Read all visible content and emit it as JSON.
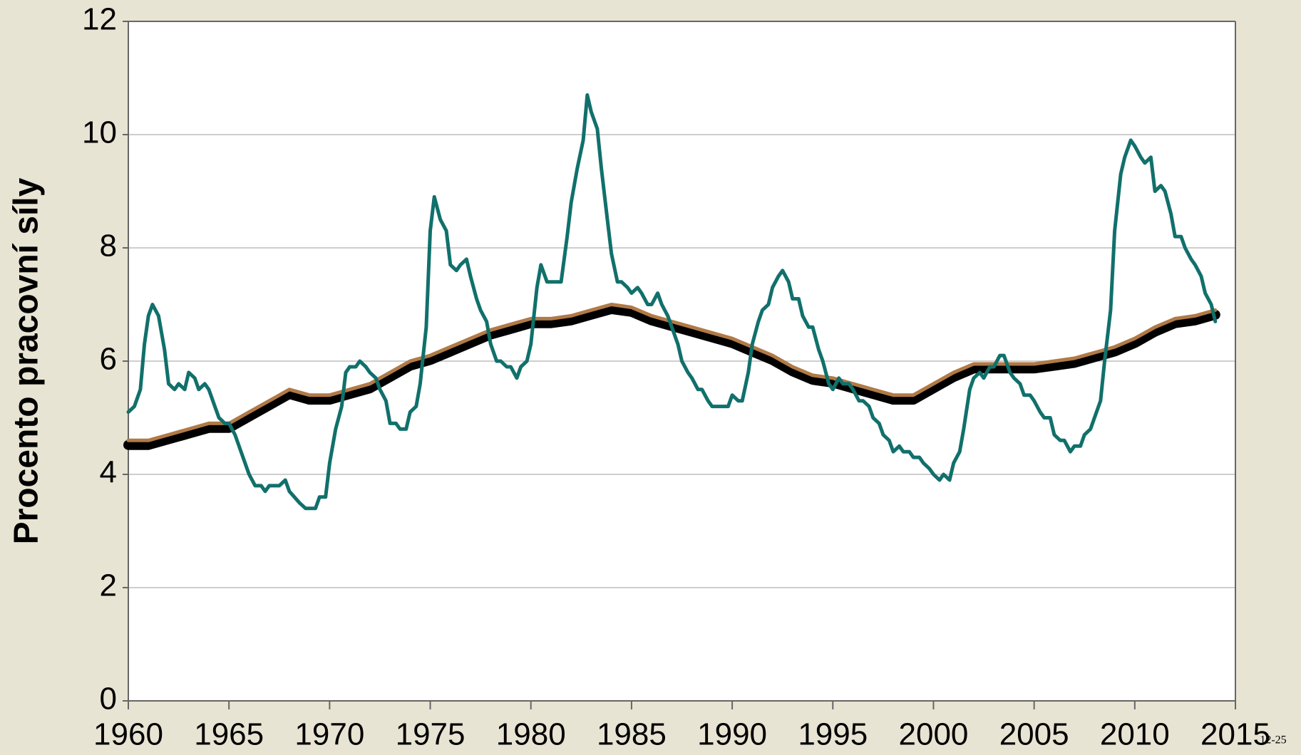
{
  "chart_data": {
    "type": "line",
    "y_label": "Procento pracovní síly",
    "page_number": "12-25",
    "xlim": [
      1960,
      2015
    ],
    "xticks": [
      1960,
      1965,
      1970,
      1975,
      1980,
      1985,
      1990,
      1995,
      2000,
      2005,
      2010,
      2015
    ],
    "ylim": [
      0,
      12
    ],
    "yticks": [
      0,
      2,
      4,
      6,
      8,
      10,
      12
    ],
    "grid": true,
    "series": [
      {
        "color": "#000000",
        "width": 14,
        "x": [
          1960,
          1961,
          1962,
          1963,
          1964,
          1965,
          1966,
          1967,
          1968,
          1969,
          1970,
          1971,
          1972,
          1973,
          1974,
          1975,
          1976,
          1977,
          1978,
          1979,
          1980,
          1981,
          1982,
          1983,
          1984,
          1985,
          1986,
          1987,
          1988,
          1989,
          1990,
          1991,
          1992,
          1993,
          1994,
          1995,
          1996,
          1997,
          1998,
          1999,
          2000,
          2001,
          2002,
          2003,
          2004,
          2005,
          2006,
          2007,
          2008,
          2009,
          2010,
          2011,
          2012,
          2013,
          2014
        ],
        "values": [
          4.52,
          4.52,
          4.62,
          4.72,
          4.82,
          4.82,
          5.02,
          5.22,
          5.42,
          5.32,
          5.32,
          5.42,
          5.52,
          5.72,
          5.92,
          6.02,
          6.17,
          6.32,
          6.47,
          6.57,
          6.67,
          6.67,
          6.72,
          6.82,
          6.92,
          6.87,
          6.72,
          6.62,
          6.52,
          6.42,
          6.32,
          6.17,
          6.02,
          5.82,
          5.67,
          5.62,
          5.52,
          5.42,
          5.32,
          5.32,
          5.52,
          5.72,
          5.87,
          5.87,
          5.87,
          5.87,
          5.92,
          5.97,
          6.07,
          6.17,
          6.32,
          6.52,
          6.67,
          6.72,
          6.82
        ]
      },
      {
        "color": "#b07a46",
        "width": 5,
        "x": [
          1960,
          1961,
          1962,
          1963,
          1964,
          1965,
          1966,
          1967,
          1968,
          1969,
          1970,
          1971,
          1972,
          1973,
          1974,
          1975,
          1976,
          1977,
          1978,
          1979,
          1980,
          1981,
          1982,
          1983,
          1984,
          1985,
          1986,
          1987,
          1988,
          1989,
          1990,
          1991,
          1992,
          1993,
          1994,
          1995,
          1996,
          1997,
          1998,
          1999,
          2000,
          2001,
          2002,
          2003,
          2004,
          2005,
          2006,
          2007,
          2008,
          2009,
          2010,
          2011,
          2012,
          2013,
          2014
        ],
        "values": [
          4.6,
          4.6,
          4.7,
          4.8,
          4.9,
          4.9,
          5.1,
          5.3,
          5.5,
          5.4,
          5.4,
          5.5,
          5.6,
          5.8,
          6.0,
          6.1,
          6.25,
          6.4,
          6.55,
          6.65,
          6.75,
          6.75,
          6.8,
          6.9,
          7.0,
          6.95,
          6.8,
          6.7,
          6.6,
          6.5,
          6.4,
          6.25,
          6.1,
          5.9,
          5.75,
          5.7,
          5.6,
          5.5,
          5.4,
          5.4,
          5.6,
          5.8,
          5.95,
          5.95,
          5.95,
          5.95,
          6.0,
          6.05,
          6.15,
          6.25,
          6.4,
          6.6,
          6.75,
          6.8,
          6.9
        ]
      },
      {
        "color": "#11706b",
        "width": 5,
        "x": [
          1960,
          1960.3,
          1960.6,
          1960.8,
          1961,
          1961.2,
          1961.5,
          1961.8,
          1962,
          1962.3,
          1962.5,
          1962.8,
          1963,
          1963.3,
          1963.5,
          1963.8,
          1964,
          1964.3,
          1964.5,
          1964.8,
          1965,
          1965.3,
          1965.6,
          1966,
          1966.3,
          1966.6,
          1966.8,
          1967,
          1967.5,
          1967.8,
          1968,
          1968.5,
          1968.8,
          1969.3,
          1969.5,
          1969.8,
          1970,
          1970.3,
          1970.6,
          1970.8,
          1971,
          1971.3,
          1971.5,
          1971.8,
          1972,
          1972.3,
          1972.5,
          1972.8,
          1973,
          1973.3,
          1973.5,
          1973.8,
          1974,
          1974.3,
          1974.5,
          1974.8,
          1975,
          1975.2,
          1975.5,
          1975.8,
          1976,
          1976.3,
          1976.5,
          1976.8,
          1977,
          1977.3,
          1977.5,
          1977.8,
          1978,
          1978.3,
          1978.5,
          1978.8,
          1979,
          1979.3,
          1979.5,
          1979.8,
          1980,
          1980.3,
          1980.5,
          1980.8,
          1981,
          1981.3,
          1981.5,
          1981.8,
          1982,
          1982.3,
          1982.6,
          1982.8,
          1983,
          1983.3,
          1983.5,
          1983.8,
          1984,
          1984.3,
          1984.5,
          1984.8,
          1985,
          1985.3,
          1985.5,
          1985.8,
          1986,
          1986.3,
          1986.5,
          1986.8,
          1987,
          1987.3,
          1987.5,
          1987.8,
          1988,
          1988.3,
          1988.5,
          1988.8,
          1989,
          1989.5,
          1989.8,
          1990,
          1990.3,
          1990.5,
          1990.8,
          1991,
          1991.3,
          1991.5,
          1991.8,
          1992,
          1992.3,
          1992.5,
          1992.8,
          1993,
          1993.3,
          1993.5,
          1993.8,
          1994,
          1994.3,
          1994.5,
          1994.8,
          1995,
          1995.3,
          1995.5,
          1995.8,
          1996,
          1996.3,
          1996.5,
          1996.8,
          1997,
          1997.3,
          1997.5,
          1997.8,
          1998,
          1998.3,
          1998.5,
          1998.8,
          1999,
          1999.3,
          1999.5,
          1999.8,
          2000,
          2000.3,
          2000.5,
          2000.8,
          2001,
          2001.3,
          2001.5,
          2001.8,
          2002,
          2002.3,
          2002.5,
          2002.8,
          2003,
          2003.3,
          2003.5,
          2003.8,
          2004,
          2004.3,
          2004.5,
          2004.8,
          2005,
          2005.3,
          2005.5,
          2005.8,
          2006,
          2006.3,
          2006.5,
          2006.8,
          2007,
          2007.3,
          2007.5,
          2007.8,
          2008,
          2008.3,
          2008.5,
          2008.8,
          2009,
          2009.3,
          2009.5,
          2009.8,
          2010,
          2010.3,
          2010.5,
          2010.8,
          2011,
          2011.3,
          2011.5,
          2011.8,
          2012,
          2012.3,
          2012.5,
          2012.8,
          2013,
          2013.3,
          2013.5,
          2013.8,
          2014
        ],
        "values": [
          5.1,
          5.2,
          5.5,
          6.3,
          6.8,
          7.0,
          6.8,
          6.2,
          5.6,
          5.5,
          5.6,
          5.5,
          5.8,
          5.7,
          5.5,
          5.6,
          5.5,
          5.2,
          5.0,
          4.9,
          4.9,
          4.7,
          4.4,
          4.0,
          3.8,
          3.8,
          3.7,
          3.8,
          3.8,
          3.9,
          3.7,
          3.5,
          3.4,
          3.4,
          3.6,
          3.6,
          4.2,
          4.8,
          5.2,
          5.8,
          5.9,
          5.9,
          6.0,
          5.9,
          5.8,
          5.7,
          5.5,
          5.3,
          4.9,
          4.9,
          4.8,
          4.8,
          5.1,
          5.2,
          5.6,
          6.6,
          8.3,
          8.9,
          8.5,
          8.3,
          7.7,
          7.6,
          7.7,
          7.8,
          7.5,
          7.1,
          6.9,
          6.7,
          6.3,
          6.0,
          6.0,
          5.9,
          5.9,
          5.7,
          5.9,
          6.0,
          6.3,
          7.3,
          7.7,
          7.4,
          7.4,
          7.4,
          7.4,
          8.2,
          8.8,
          9.4,
          9.9,
          10.7,
          10.4,
          10.1,
          9.4,
          8.5,
          7.9,
          7.4,
          7.4,
          7.3,
          7.2,
          7.3,
          7.2,
          7.0,
          7.0,
          7.2,
          7.0,
          6.8,
          6.6,
          6.3,
          6.0,
          5.8,
          5.7,
          5.5,
          5.5,
          5.3,
          5.2,
          5.2,
          5.2,
          5.4,
          5.3,
          5.3,
          5.8,
          6.3,
          6.7,
          6.9,
          7.0,
          7.3,
          7.5,
          7.6,
          7.4,
          7.1,
          7.1,
          6.8,
          6.6,
          6.6,
          6.2,
          6.0,
          5.6,
          5.5,
          5.7,
          5.6,
          5.6,
          5.5,
          5.3,
          5.3,
          5.2,
          5.0,
          4.9,
          4.7,
          4.6,
          4.4,
          4.5,
          4.4,
          4.4,
          4.3,
          4.3,
          4.2,
          4.1,
          4.0,
          3.9,
          4.0,
          3.9,
          4.2,
          4.4,
          4.8,
          5.5,
          5.7,
          5.8,
          5.7,
          5.9,
          5.9,
          6.1,
          6.1,
          5.8,
          5.7,
          5.6,
          5.4,
          5.4,
          5.3,
          5.1,
          5.0,
          5.0,
          4.7,
          4.6,
          4.6,
          4.4,
          4.5,
          4.5,
          4.7,
          4.8,
          5.0,
          5.3,
          6.0,
          6.9,
          8.3,
          9.3,
          9.6,
          9.9,
          9.8,
          9.6,
          9.5,
          9.6,
          9.0,
          9.1,
          9.0,
          8.6,
          8.2,
          8.2,
          8.0,
          7.8,
          7.7,
          7.5,
          7.2,
          7.0,
          6.7
        ]
      }
    ]
  }
}
